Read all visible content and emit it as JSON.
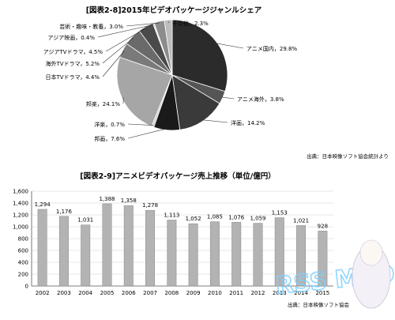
{
  "chart_data": [
    {
      "type": "pie",
      "title": "[図表2-8]2015年ビデオパッケージジャンルシェア",
      "source": "出典：日本映像ソフト協会統計より",
      "slices": [
        {
          "label": "アニメ国内",
          "value": 29.8,
          "value_label": "29.8%",
          "color": "#2b2b2b"
        },
        {
          "label": "アニメ海外",
          "value": 3.8,
          "value_label": "3.8%",
          "color": "#555555"
        },
        {
          "label": "洋画",
          "value": 14.2,
          "value_label": "14.2%",
          "color": "#3a3a3a"
        },
        {
          "label": "邦画",
          "value": 7.6,
          "value_label": "7.6%",
          "color": "#1a1a1a"
        },
        {
          "label": "洋楽",
          "value": 0.7,
          "value_label": "0.7%",
          "color": "#cfcfcf"
        },
        {
          "label": "邦楽",
          "value": 24.1,
          "value_label": "24.1%",
          "color": "#a6a6a6"
        },
        {
          "label": "日本TVドラマ",
          "value": 4.4,
          "value_label": "4.4%",
          "color": "#7a7a7a"
        },
        {
          "label": "海外TVドラマ",
          "value": 5.2,
          "value_label": "5.2%",
          "color": "#6a6a6a"
        },
        {
          "label": "アジアTVドラマ",
          "value": 4.5,
          "value_label": "4.5%",
          "color": "#4a4a4a"
        },
        {
          "label": "アジア映画",
          "value": 0.4,
          "value_label": "0.4%",
          "color": "#dddddd"
        },
        {
          "label": "芸術・趣味・教養",
          "value": 3.0,
          "value_label": "3.0%",
          "color": "#8c8c8c"
        },
        {
          "label": "その他",
          "value": 2.3,
          "value_label": "2.3%",
          "color": "#bdbdbd"
        }
      ]
    },
    {
      "type": "bar",
      "title": "[図表2-9]アニメビデオパッケージ売上推移（単位/億円）",
      "source": "出典：日本映像ソフト協会",
      "categories": [
        "2002",
        "2003",
        "2004",
        "2005",
        "2006",
        "2007",
        "2008",
        "2009",
        "2010",
        "2011",
        "2012",
        "2013",
        "2014",
        "2015"
      ],
      "values": [
        1294,
        1176,
        1031,
        1388,
        1358,
        1278,
        1113,
        1052,
        1085,
        1076,
        1059,
        1153,
        1021,
        928
      ],
      "data_labels": [
        "1,294",
        "1,176",
        "1,031",
        "1,388",
        "1,358",
        "1,278",
        "1,113",
        "1,052",
        "1,085",
        "1,076",
        "1,059",
        "1,153",
        "1,021",
        "928"
      ],
      "yticks": [
        "0",
        "200",
        "400",
        "600",
        "800",
        "1,000",
        "1,200",
        "1,400",
        "1,600"
      ],
      "ylim": [
        0,
        1600
      ],
      "grid": true,
      "bar_color": "#b3b3b3"
    }
  ],
  "watermark": {
    "text": "RSS MEOS"
  }
}
